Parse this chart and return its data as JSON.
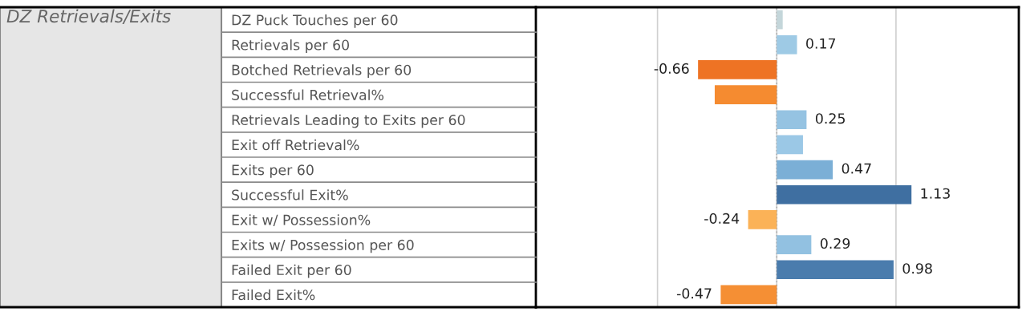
{
  "chart_data": {
    "type": "bar",
    "orientation": "horizontal",
    "ylabel": "DZ Retrievals/Exits",
    "categories": [
      "DZ Puck Touches per 60",
      "Retrievals per 60",
      "Botched Retrievals per 60",
      "Successful Retrieval%",
      "Retrievals Leading to Exits per 60",
      "Exit off Retrieval%",
      "Exits per 60",
      "Successful Exit%",
      "Exit w/ Possession%",
      "Exits w/ Possession per 60",
      "Failed Exit per 60",
      "Failed Exit%"
    ],
    "values": [
      0.05,
      0.17,
      -0.66,
      -0.52,
      0.25,
      0.22,
      0.47,
      1.13,
      -0.24,
      0.29,
      0.98,
      -0.47
    ],
    "value_labels": [
      null,
      "0.17",
      "-0.66",
      null,
      "0.25",
      null,
      "0.47",
      "1.13",
      "-0.24",
      "0.29",
      "0.98",
      "-0.47"
    ],
    "colors": [
      "#c4d6da",
      "#9ecae5",
      "#ee7324",
      "#f58b30",
      "#95c3e2",
      "#9bc8e6",
      "#7bafd6",
      "#3f6fa1",
      "#fbb257",
      "#92c1e1",
      "#4a7cad",
      "#f58f34"
    ],
    "xlim": [
      -2.02,
      2.03
    ],
    "xticks": [
      {
        "value": -1,
        "label": null
      },
      {
        "value": 0,
        "label": null
      },
      {
        "value": 1,
        "label": null
      }
    ],
    "grid": "x",
    "tick_labels": "y",
    "ref_lines": [
      {
        "axis": "x",
        "value": 0,
        "label": null,
        "color": "#aaaaaa",
        "line_style": "dotted"
      }
    ]
  }
}
